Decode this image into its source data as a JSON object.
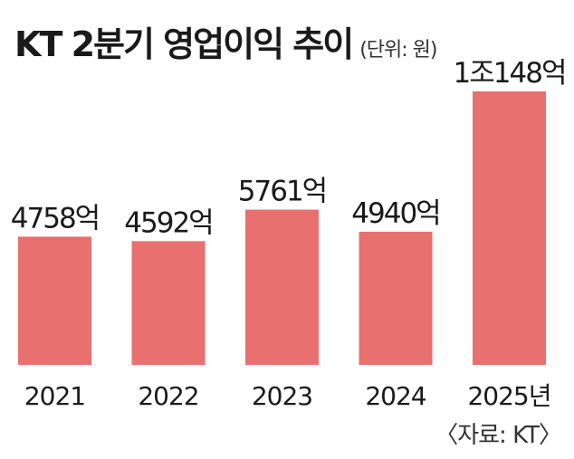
{
  "header": {
    "title": "KT 2분기 영업이익 추이",
    "unit": "(단위: 원)"
  },
  "source": "〈자료:  KT〉",
  "colors": {
    "bar": "#e8706e",
    "text": "#1a1a1a",
    "background": "#ffffff"
  },
  "chart_data": {
    "type": "bar",
    "title": "KT 2분기 영업이익 추이",
    "subtitle": "(단위: 원)",
    "xlabel": "",
    "ylabel": "",
    "categories": [
      "2021",
      "2022",
      "2023",
      "2024",
      "2025년"
    ],
    "values": [
      475800000000,
      459200000000,
      576100000000,
      494000000000,
      1014800000000
    ],
    "data_labels": [
      "4758억",
      "4592억",
      "5761억",
      "4940억",
      "1조148억"
    ],
    "ylim": [
      0,
      1014800000000
    ],
    "grid": false,
    "legend": "none"
  }
}
